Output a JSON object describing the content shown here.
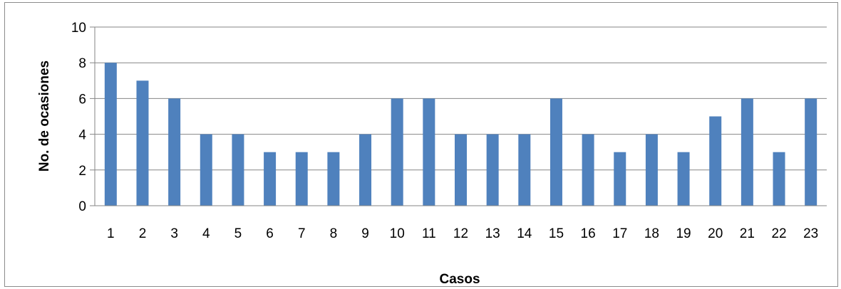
{
  "chart_data": {
    "type": "bar",
    "title": "",
    "xlabel": "Casos",
    "ylabel": "No. de ocasiones",
    "ylim": [
      0,
      10
    ],
    "yticks": [
      0,
      2,
      4,
      6,
      8,
      10
    ],
    "grid": true,
    "legend": "none",
    "categories": [
      "1",
      "2",
      "3",
      "4",
      "5",
      "6",
      "7",
      "8",
      "9",
      "10",
      "11",
      "12",
      "13",
      "14",
      "15",
      "16",
      "17",
      "18",
      "19",
      "20",
      "21",
      "22",
      "23"
    ],
    "values": [
      8,
      7,
      6,
      4,
      4,
      3,
      3,
      3,
      4,
      6,
      6,
      4,
      4,
      4,
      6,
      4,
      3,
      4,
      3,
      5,
      6,
      3,
      6
    ],
    "colors": {
      "bar": "#4f81bd",
      "grid": "#868686",
      "axis": "#868686"
    }
  }
}
